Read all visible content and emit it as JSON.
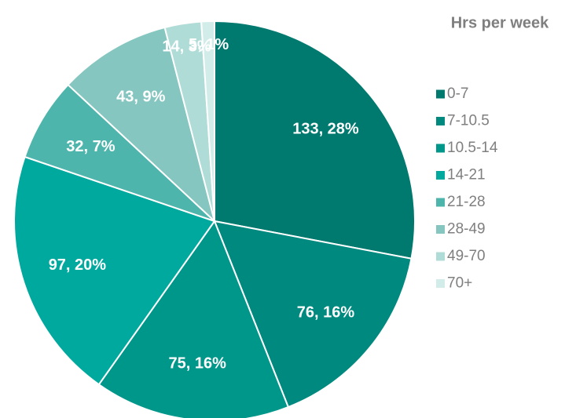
{
  "chart_data": {
    "type": "pie",
    "legend_title": "Hrs per week",
    "categories": [
      "0-7",
      "7-10.5",
      "10.5-14",
      "14-21",
      "21-28",
      "28-49",
      "49-70",
      "70+"
    ],
    "values": [
      133,
      76,
      75,
      97,
      32,
      43,
      14,
      5
    ],
    "value_labels": [
      "133, 28%",
      "76, 16%",
      "75, 16%",
      "97, 20%",
      "32, 7%",
      "43, 9%",
      "14, 3%",
      "5, 1%"
    ],
    "colors": [
      "#00796f",
      "#00897e",
      "#00978b",
      "#00a99e",
      "#4db5ab",
      "#85c7c0",
      "#b0dcd7",
      "#d2ece9"
    ],
    "legend": "right"
  }
}
